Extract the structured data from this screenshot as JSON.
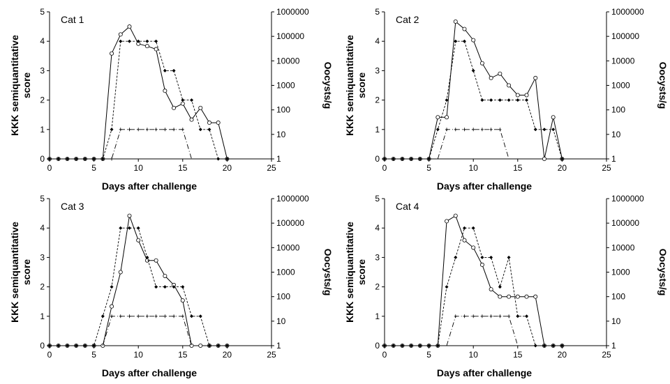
{
  "chart_data": [
    {
      "type": "line",
      "title": "Cat 1",
      "xlabel": "Days after challenge",
      "ylabel_left": "KKK semiquantitative score",
      "ylabel_right": "Oocysts/g",
      "xlim": [
        0,
        25
      ],
      "xticks": [
        "0",
        "5",
        "10",
        "15",
        "20",
        "25"
      ],
      "ylim_left": [
        0,
        5
      ],
      "yticks_left": [
        "0",
        "1",
        "2",
        "3",
        "4",
        "5"
      ],
      "ylim_right": [
        1,
        1000000
      ],
      "yscale_right": "log",
      "yticks_right": [
        "1",
        "10",
        "100",
        "1000",
        "10000",
        "100000",
        "1000000"
      ],
      "series": [
        {
          "style": "solid line, open circles",
          "axis": "right",
          "x": [
            0,
            1,
            2,
            3,
            4,
            5,
            6,
            7,
            8,
            9,
            10,
            11,
            12,
            13,
            14,
            15,
            16,
            17,
            18,
            19,
            20
          ],
          "y": [
            1,
            1,
            1,
            1,
            1,
            1,
            1,
            20000,
            120000,
            250000,
            50000,
            40000,
            30000,
            600,
            120,
            180,
            40,
            120,
            30,
            30,
            1
          ]
        },
        {
          "style": "dashed line, filled diamonds",
          "axis": "left",
          "x": [
            0,
            1,
            2,
            3,
            4,
            5,
            6,
            7,
            8,
            9,
            10,
            11,
            12,
            13,
            14,
            15,
            16,
            17,
            18,
            19,
            20
          ],
          "y": [
            0,
            0,
            0,
            0,
            0,
            0,
            0,
            1,
            4,
            4,
            4,
            4,
            4,
            3,
            3,
            2,
            2,
            1,
            1,
            0,
            0
          ]
        },
        {
          "style": "dash-dot line, plus markers",
          "axis": "left",
          "x": [
            6,
            7,
            8,
            9,
            10,
            11,
            12,
            13,
            14,
            15,
            16
          ],
          "y": [
            0,
            0,
            1,
            1,
            1,
            1,
            1,
            1,
            1,
            1,
            0
          ]
        }
      ]
    },
    {
      "type": "line",
      "title": "Cat 2",
      "xlabel": "Days after challenge",
      "ylabel_left": "KKK semiquantitative score",
      "ylabel_right": "Oocysts/g",
      "xlim": [
        0,
        25
      ],
      "xticks": [
        "0",
        "5",
        "10",
        "15",
        "20",
        "25"
      ],
      "ylim_left": [
        0,
        5
      ],
      "yticks_left": [
        "0",
        "1",
        "2",
        "3",
        "4",
        "5"
      ],
      "ylim_right": [
        1,
        1000000
      ],
      "yscale_right": "log",
      "yticks_right": [
        "1",
        "10",
        "100",
        "1000",
        "10000",
        "100000",
        "1000000"
      ],
      "series": [
        {
          "style": "solid line, open circles",
          "axis": "right",
          "x": [
            0,
            1,
            2,
            3,
            4,
            5,
            6,
            7,
            8,
            9,
            10,
            11,
            12,
            13,
            14,
            15,
            16,
            17,
            18,
            19,
            20
          ],
          "y": [
            1,
            1,
            1,
            1,
            1,
            1,
            50,
            50,
            400000,
            200000,
            70000,
            8000,
            2000,
            3000,
            1000,
            400,
            400,
            2000,
            1,
            50,
            1
          ]
        },
        {
          "style": "dashed line, filled diamonds",
          "axis": "left",
          "x": [
            0,
            1,
            2,
            3,
            4,
            5,
            6,
            7,
            8,
            9,
            10,
            11,
            12,
            13,
            14,
            15,
            16,
            17,
            18,
            19,
            20
          ],
          "y": [
            0,
            0,
            0,
            0,
            0,
            0,
            1,
            2,
            4,
            4,
            3,
            2,
            2,
            2,
            2,
            2,
            2,
            1,
            1,
            1,
            0
          ]
        },
        {
          "style": "dash-dot line, plus markers",
          "axis": "left",
          "x": [
            6,
            7,
            8,
            9,
            10,
            11,
            12,
            13,
            14
          ],
          "y": [
            0,
            1,
            1,
            1,
            1,
            1,
            1,
            1,
            0
          ]
        }
      ]
    },
    {
      "type": "line",
      "title": "Cat 3",
      "xlabel": "Days after challenge",
      "ylabel_left": "KKK semiquantitative score",
      "ylabel_right": "Oocysts/g",
      "xlim": [
        0,
        25
      ],
      "xticks": [
        "0",
        "5",
        "10",
        "15",
        "20",
        "25"
      ],
      "ylim_left": [
        0,
        5
      ],
      "yticks_left": [
        "0",
        "1",
        "2",
        "3",
        "4",
        "5"
      ],
      "ylim_right": [
        1,
        1000000
      ],
      "yscale_right": "log",
      "yticks_right": [
        "1",
        "10",
        "100",
        "1000",
        "10000",
        "100000",
        "1000000"
      ],
      "series": [
        {
          "style": "solid line, open circles",
          "axis": "right",
          "x": [
            0,
            1,
            2,
            3,
            4,
            5,
            6,
            7,
            8,
            9,
            10,
            11,
            12,
            13,
            14,
            15,
            16,
            17,
            18,
            19,
            20
          ],
          "y": [
            1,
            1,
            1,
            1,
            1,
            1,
            1,
            40,
            1000,
            200000,
            20000,
            3000,
            3000,
            700,
            300,
            70,
            1,
            1,
            1,
            1,
            1
          ]
        },
        {
          "style": "dashed line, filled diamonds",
          "axis": "left",
          "x": [
            0,
            1,
            2,
            3,
            4,
            5,
            6,
            7,
            8,
            9,
            10,
            11,
            12,
            13,
            14,
            15,
            16,
            17,
            18,
            19,
            20
          ],
          "y": [
            0,
            0,
            0,
            0,
            0,
            0,
            1,
            2,
            4,
            4,
            4,
            3,
            2,
            2,
            2,
            2,
            1,
            1,
            0,
            0,
            0
          ]
        },
        {
          "style": "dash-dot line, plus markers",
          "axis": "left",
          "x": [
            6,
            7,
            8,
            9,
            10,
            11,
            12,
            13,
            14,
            15,
            16
          ],
          "y": [
            0,
            1,
            1,
            1,
            1,
            1,
            1,
            1,
            1,
            1,
            0
          ]
        }
      ]
    },
    {
      "type": "line",
      "title": "Cat 4",
      "xlabel": "Days after challenge",
      "ylabel_left": "KKK semiquantitative score",
      "ylabel_right": "Oocysts/g",
      "xlim": [
        0,
        25
      ],
      "xticks": [
        "0",
        "5",
        "10",
        "15",
        "20",
        "25"
      ],
      "ylim_left": [
        0,
        5
      ],
      "yticks_left": [
        "0",
        "1",
        "2",
        "3",
        "4",
        "5"
      ],
      "ylim_right": [
        1,
        1000000
      ],
      "yscale_right": "log",
      "yticks_right": [
        "1",
        "10",
        "100",
        "1000",
        "10000",
        "100000",
        "1000000"
      ],
      "series": [
        {
          "style": "solid line, open circles",
          "axis": "right",
          "x": [
            0,
            1,
            2,
            3,
            4,
            5,
            6,
            7,
            8,
            9,
            10,
            11,
            12,
            13,
            14,
            15,
            16,
            17,
            18,
            19,
            20
          ],
          "y": [
            1,
            1,
            1,
            1,
            1,
            1,
            1,
            120000,
            200000,
            20000,
            10000,
            2000,
            200,
            100,
            100,
            100,
            100,
            100,
            1,
            1,
            1
          ]
        },
        {
          "style": "dashed line, filled diamonds",
          "axis": "left",
          "x": [
            0,
            1,
            2,
            3,
            4,
            5,
            6,
            7,
            8,
            9,
            10,
            11,
            12,
            13,
            14,
            15,
            16,
            17,
            18,
            19,
            20
          ],
          "y": [
            0,
            0,
            0,
            0,
            0,
            0,
            0,
            2,
            3,
            4,
            4,
            3,
            3,
            2,
            3,
            1,
            1,
            0,
            0,
            0,
            0
          ]
        },
        {
          "style": "dash-dot line, plus markers",
          "axis": "left",
          "x": [
            7,
            8,
            9,
            10,
            11,
            12,
            13,
            14,
            15
          ],
          "y": [
            0,
            1,
            1,
            1,
            1,
            1,
            1,
            1,
            0
          ]
        }
      ]
    }
  ]
}
